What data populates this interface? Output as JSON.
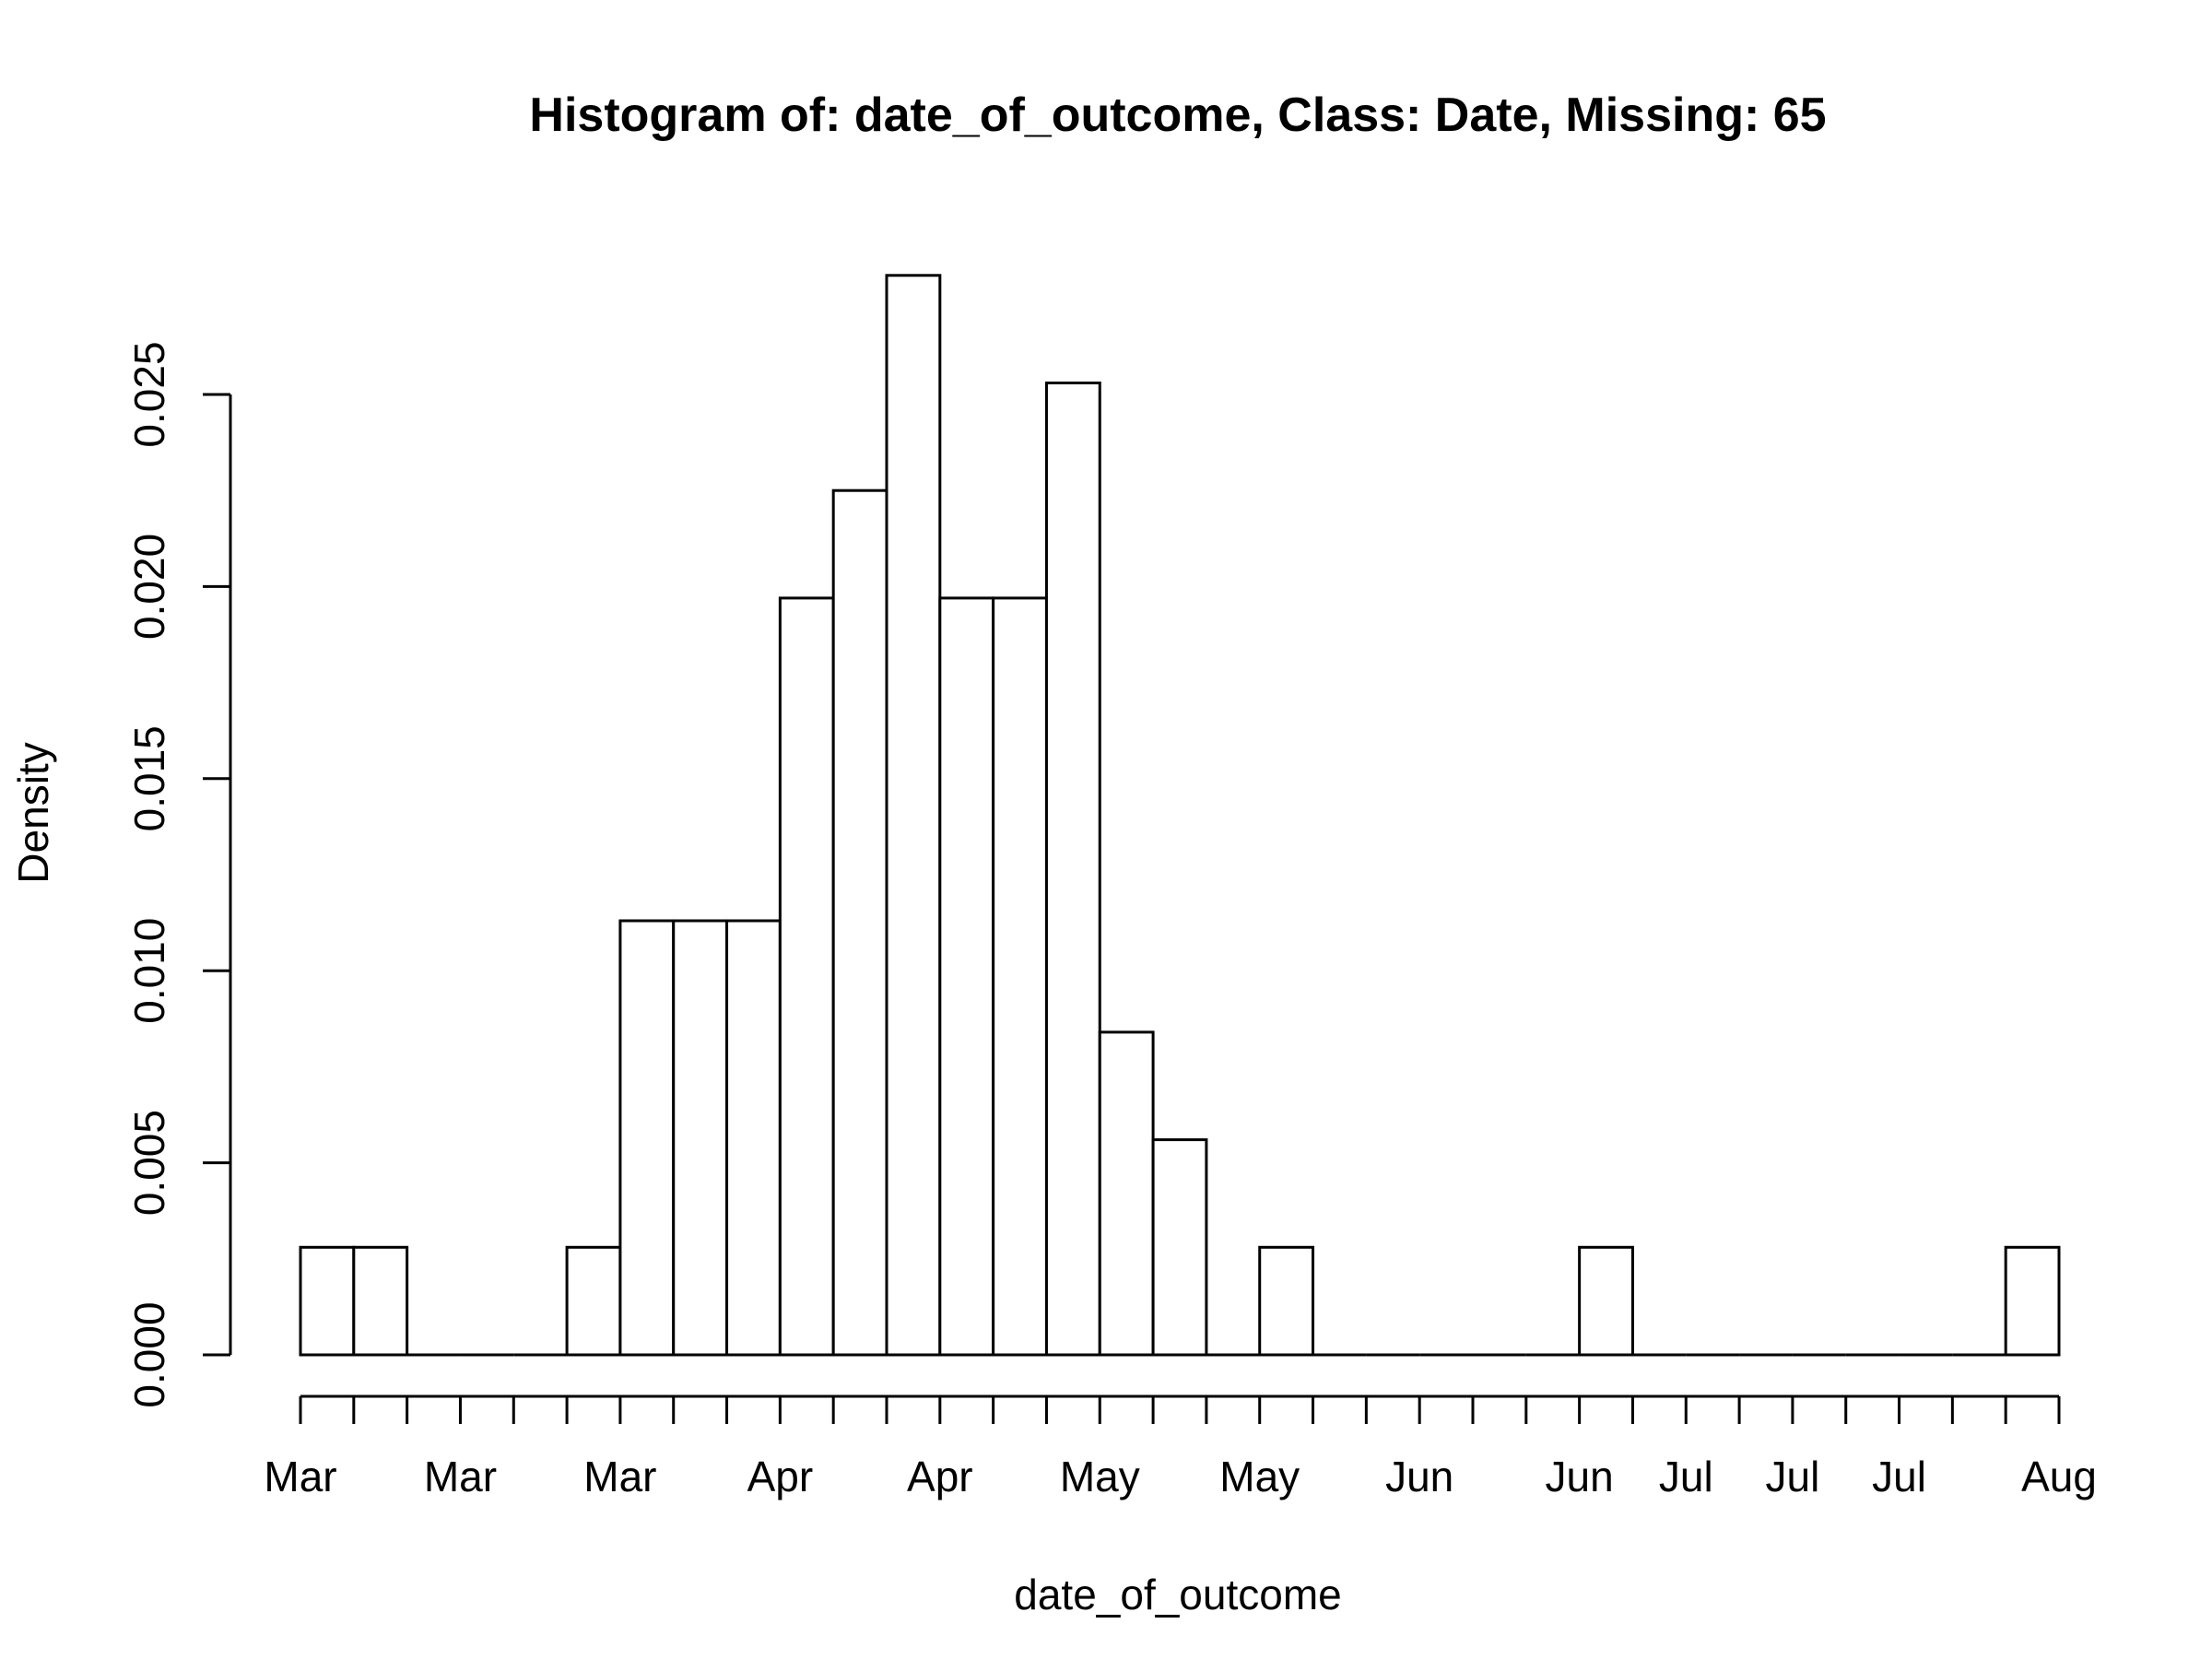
{
  "chart_data": {
    "type": "bar",
    "title": "Histogram of: date_of_outcome, Class: Date, Missing: 65",
    "xlabel": "date_of_outcome",
    "ylabel": "Density",
    "ylim": [
      0,
      0.028
    ],
    "y_ticks": [
      "0.000",
      "0.005",
      "0.010",
      "0.015",
      "0.020",
      "0.025"
    ],
    "y_tick_values": [
      0,
      0.005,
      0.01,
      0.015,
      0.02,
      0.025
    ],
    "bin_count": 33,
    "densities": [
      0.0028,
      0.0028,
      0,
      0,
      0,
      0.0028,
      0.0113,
      0.0113,
      0.0113,
      0.0197,
      0.0225,
      0.0281,
      0.0197,
      0.0197,
      0.0253,
      0.0084,
      0.0056,
      0,
      0.0028,
      0,
      0,
      0,
      0,
      0,
      0.0028,
      0,
      0,
      0,
      0,
      0,
      0,
      0,
      0.0028
    ],
    "x_tick_labels": [
      {
        "bin": 0,
        "label": "Mar"
      },
      {
        "bin": 3,
        "label": "Mar"
      },
      {
        "bin": 6,
        "label": "Mar"
      },
      {
        "bin": 9,
        "label": "Apr"
      },
      {
        "bin": 12,
        "label": "Apr"
      },
      {
        "bin": 15,
        "label": "May"
      },
      {
        "bin": 18,
        "label": "May"
      },
      {
        "bin": 21,
        "label": "Jun"
      },
      {
        "bin": 24,
        "label": "Jun"
      },
      {
        "bin": 26,
        "label": "Jul"
      },
      {
        "bin": 28,
        "label": "Jul"
      },
      {
        "bin": 30,
        "label": "Jul"
      },
      {
        "bin": 33,
        "label": "Aug"
      }
    ],
    "grid": false,
    "legend": "none"
  }
}
